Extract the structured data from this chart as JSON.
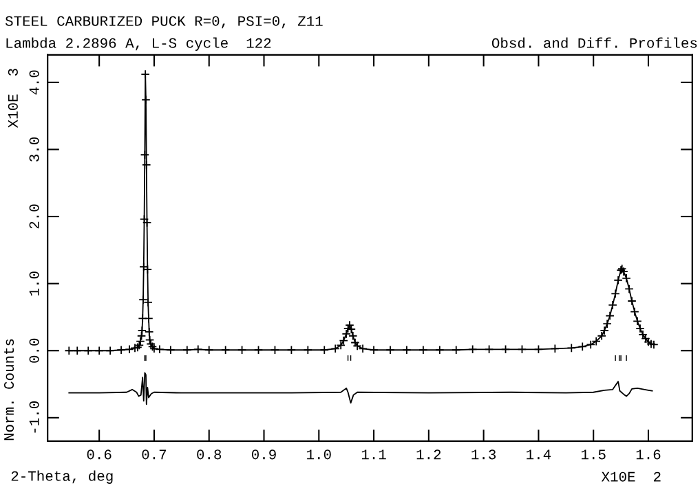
{
  "chart_data": {
    "type": "scatter",
    "title": "STEEL CARBURIZED PUCK R=0, PSI=0, Z11",
    "subtitle": "Lambda 2.2896 A, L-S cycle  122",
    "annotations": [
      "Obsd. and Diff. Profiles",
      "X10E  2",
      "X10E  3"
    ],
    "xlabel": "2-Theta, deg",
    "ylabel": "Norm. Counts",
    "xlim": [
      0.506,
      1.68
    ],
    "xticks": [
      0.6,
      0.7,
      0.8,
      0.9,
      {
        "value": 1.0,
        "label": "1.0"
      },
      1.1,
      1.2,
      1.3,
      1.4,
      1.5,
      1.6
    ],
    "ylim": [
      -1.35,
      4.41
    ],
    "yticks": [
      {
        "value": -1.0,
        "label": "-1.0"
      },
      {
        "value": 0.0,
        "label": "0.0"
      },
      {
        "value": 1.0,
        "label": "1.0"
      },
      {
        "value": 2.0,
        "label": "2.0"
      },
      {
        "value": 3.0,
        "label": "3.0"
      },
      {
        "value": 4.0,
        "label": "4.0"
      }
    ],
    "grid": false,
    "legend": false,
    "series": [
      {
        "marker": "cross",
        "color": "#000000",
        "x": [
          0.545,
          0.56,
          0.58,
          0.6,
          0.62,
          0.64,
          0.655,
          0.665,
          0.67,
          0.673,
          0.675,
          0.677,
          0.678,
          0.679,
          0.68,
          0.681,
          0.682,
          0.683,
          0.684,
          0.685,
          0.686,
          0.687,
          0.688,
          0.689,
          0.69,
          0.691,
          0.692,
          0.694,
          0.697,
          0.7,
          0.71,
          0.73,
          0.76,
          0.78,
          0.8,
          0.83,
          0.86,
          0.89,
          0.92,
          0.95,
          0.98,
          1.01,
          1.03,
          1.04,
          1.045,
          1.05,
          1.053,
          1.056,
          1.059,
          1.062,
          1.066,
          1.07,
          1.08,
          1.1,
          1.13,
          1.16,
          1.19,
          1.22,
          1.25,
          1.28,
          1.31,
          1.34,
          1.37,
          1.4,
          1.43,
          1.46,
          1.48,
          1.495,
          1.505,
          1.515,
          1.52,
          1.525,
          1.53,
          1.535,
          1.54,
          1.545,
          1.55,
          1.552,
          1.555,
          1.56,
          1.565,
          1.57,
          1.575,
          1.58,
          1.585,
          1.59,
          1.595,
          1.6,
          1.605,
          1.61
        ],
        "values": [
          0.0,
          0.0,
          0.0,
          0.0,
          0.0,
          0.01,
          0.02,
          0.04,
          0.05,
          0.08,
          0.14,
          0.22,
          0.3,
          0.48,
          0.76,
          1.25,
          1.96,
          2.92,
          4.12,
          3.74,
          2.77,
          1.91,
          1.21,
          0.72,
          0.48,
          0.28,
          0.16,
          0.1,
          0.06,
          0.03,
          0.02,
          0.01,
          0.01,
          0.02,
          0.01,
          0.01,
          0.01,
          0.01,
          0.01,
          0.01,
          0.01,
          0.01,
          0.03,
          0.08,
          0.15,
          0.25,
          0.33,
          0.38,
          0.32,
          0.22,
          0.12,
          0.07,
          0.03,
          0.01,
          0.01,
          0.01,
          0.01,
          0.01,
          0.01,
          0.02,
          0.02,
          0.02,
          0.02,
          0.02,
          0.03,
          0.04,
          0.06,
          0.09,
          0.14,
          0.22,
          0.3,
          0.4,
          0.52,
          0.68,
          0.85,
          1.05,
          1.2,
          1.22,
          1.18,
          1.08,
          0.92,
          0.74,
          0.58,
          0.44,
          0.33,
          0.24,
          0.18,
          0.13,
          0.1,
          0.09
        ]
      },
      {
        "type": "line",
        "line_style": "solid",
        "color": "#000000",
        "x": [
          0.545,
          0.56,
          0.58,
          0.6,
          0.62,
          0.64,
          0.655,
          0.665,
          0.67,
          0.673,
          0.675,
          0.677,
          0.678,
          0.679,
          0.68,
          0.681,
          0.682,
          0.683,
          0.684,
          0.685,
          0.686,
          0.687,
          0.688,
          0.689,
          0.69,
          0.691,
          0.692,
          0.694,
          0.697,
          0.7,
          0.71,
          0.73,
          0.76,
          0.78,
          0.8,
          0.83,
          0.86,
          0.89,
          0.92,
          0.95,
          0.98,
          1.01,
          1.03,
          1.04,
          1.045,
          1.05,
          1.053,
          1.056,
          1.059,
          1.062,
          1.066,
          1.07,
          1.08,
          1.1,
          1.13,
          1.16,
          1.19,
          1.22,
          1.25,
          1.28,
          1.31,
          1.34,
          1.37,
          1.4,
          1.43,
          1.46,
          1.48,
          1.495,
          1.505,
          1.515,
          1.52,
          1.525,
          1.53,
          1.535,
          1.54,
          1.545,
          1.55,
          1.552,
          1.555,
          1.56,
          1.565,
          1.57,
          1.575,
          1.58,
          1.585,
          1.59,
          1.595,
          1.6,
          1.605,
          1.61
        ],
        "values": [
          0.0,
          0.0,
          0.0,
          0.0,
          0.0,
          0.01,
          0.02,
          0.04,
          0.05,
          0.08,
          0.14,
          0.22,
          0.3,
          0.48,
          0.76,
          1.25,
          1.96,
          2.92,
          4.12,
          3.74,
          2.77,
          1.91,
          1.21,
          0.72,
          0.48,
          0.28,
          0.16,
          0.1,
          0.06,
          0.03,
          0.02,
          0.01,
          0.01,
          0.02,
          0.01,
          0.01,
          0.01,
          0.01,
          0.01,
          0.01,
          0.01,
          0.01,
          0.03,
          0.08,
          0.15,
          0.25,
          0.33,
          0.38,
          0.32,
          0.22,
          0.12,
          0.07,
          0.03,
          0.01,
          0.01,
          0.01,
          0.01,
          0.01,
          0.01,
          0.02,
          0.02,
          0.02,
          0.02,
          0.02,
          0.03,
          0.04,
          0.06,
          0.09,
          0.14,
          0.22,
          0.3,
          0.4,
          0.52,
          0.68,
          0.85,
          1.05,
          1.2,
          1.22,
          1.18,
          1.08,
          0.92,
          0.74,
          0.58,
          0.44,
          0.33,
          0.24,
          0.18,
          0.13,
          0.1,
          0.09
        ]
      },
      {
        "type": "line",
        "line_style": "solid",
        "color": "#000000",
        "x": [
          0.545,
          0.6,
          0.65,
          0.66,
          0.668,
          0.672,
          0.676,
          0.679,
          0.681,
          0.683,
          0.685,
          0.686,
          0.688,
          0.69,
          0.695,
          0.7,
          0.75,
          0.85,
          0.95,
          1.04,
          1.05,
          1.053,
          1.058,
          1.063,
          1.07,
          1.2,
          1.35,
          1.45,
          1.5,
          1.52,
          1.535,
          1.545,
          1.548,
          1.555,
          1.56,
          1.565,
          1.57,
          1.58,
          1.6,
          1.607
        ],
        "values": [
          -0.63,
          -0.63,
          -0.62,
          -0.58,
          -0.62,
          -0.68,
          -0.66,
          -0.4,
          -0.75,
          -0.33,
          -0.36,
          -0.8,
          -0.55,
          -0.7,
          -0.64,
          -0.62,
          -0.63,
          -0.63,
          -0.63,
          -0.62,
          -0.56,
          -0.62,
          -0.78,
          -0.66,
          -0.62,
          -0.63,
          -0.62,
          -0.63,
          -0.62,
          -0.59,
          -0.58,
          -0.46,
          -0.6,
          -0.65,
          -0.68,
          -0.64,
          -0.57,
          -0.56,
          -0.59,
          -0.6
        ]
      },
      {
        "type": "bar",
        "color": "#000000",
        "x": [
          0.683,
          0.685,
          1.053,
          1.058,
          1.54,
          1.547,
          1.55,
          1.56
        ],
        "base": [
          -0.15,
          -0.15,
          -0.15,
          -0.15,
          -0.15,
          -0.15,
          -0.15,
          -0.15
        ],
        "values": [
          0.08,
          0.08,
          0.08,
          0.08,
          0.08,
          0.08,
          0.08,
          0.08
        ]
      }
    ]
  }
}
